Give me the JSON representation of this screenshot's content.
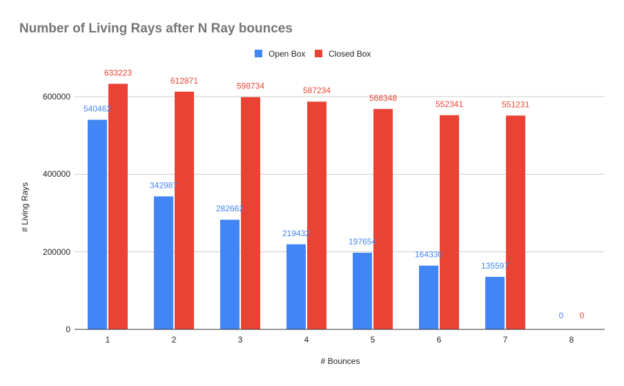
{
  "chart_data": {
    "type": "bar",
    "title": "Number of Living Rays after N Ray bounces",
    "xlabel": "# Bounces",
    "ylabel": "# Living Rays",
    "categories": [
      "1",
      "2",
      "3",
      "4",
      "5",
      "6",
      "7",
      "8"
    ],
    "series": [
      {
        "name": "Open Box",
        "color": "#4285f4",
        "values": [
          540462,
          342987,
          282662,
          219432,
          197654,
          164330,
          135597,
          0
        ]
      },
      {
        "name": "Closed Box",
        "color": "#ea4335",
        "values": [
          633223,
          612871,
          598734,
          587234,
          568348,
          552341,
          551231,
          0
        ]
      }
    ],
    "ylim": [
      0,
      600000
    ],
    "yticks": [
      "0",
      "200000",
      "400000",
      "600000"
    ],
    "grid": true,
    "legend_position": "top"
  }
}
